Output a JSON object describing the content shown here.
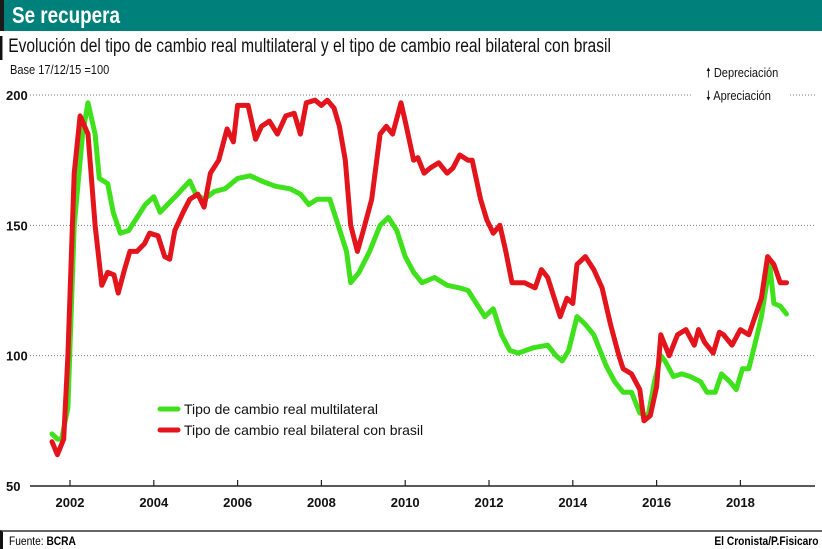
{
  "header": {
    "title": "Se recupera"
  },
  "subtitle": "Evolución del tipo de cambio real multilateral y el tipo de cambio real bilateral con brasil",
  "base_note": "Base 17/12/15 =100",
  "indicators": {
    "up": "Depreciación",
    "down": "Apreciación"
  },
  "footer": {
    "source_label": "Fuente:",
    "source": "BCRA",
    "credit": "El Cronista/P.Fisicaro"
  },
  "chart_data": {
    "type": "line",
    "title": "Evolución del tipo de cambio real multilateral y el tipo de cambio real bilateral con brasil",
    "ylim": [
      50,
      200
    ],
    "yticks": [
      50,
      100,
      150,
      200
    ],
    "xticks": [
      2002,
      2004,
      2006,
      2008,
      2010,
      2012,
      2014,
      2016,
      2018
    ],
    "grid": "horizontal dotted",
    "legend": "bottom-left",
    "series": [
      {
        "name": "Tipo de cambio real multilateral",
        "color": "#3fe11c",
        "points": [
          [
            2001.57,
            70
          ],
          [
            2001.7,
            68
          ],
          [
            2001.8,
            68
          ],
          [
            2001.95,
            80
          ],
          [
            2002.1,
            150
          ],
          [
            2002.3,
            185
          ],
          [
            2002.43,
            197
          ],
          [
            2002.6,
            185
          ],
          [
            2002.7,
            168
          ],
          [
            2002.9,
            166
          ],
          [
            2003.03,
            155
          ],
          [
            2003.2,
            147
          ],
          [
            2003.4,
            148
          ],
          [
            2003.6,
            153
          ],
          [
            2003.8,
            158
          ],
          [
            2004.0,
            161
          ],
          [
            2004.15,
            155
          ],
          [
            2004.33,
            158
          ],
          [
            2004.57,
            162
          ],
          [
            2004.86,
            167
          ],
          [
            2005.0,
            162
          ],
          [
            2005.2,
            160
          ],
          [
            2005.45,
            163
          ],
          [
            2005.7,
            164
          ],
          [
            2006.0,
            168
          ],
          [
            2006.3,
            169
          ],
          [
            2006.57,
            167
          ],
          [
            2006.9,
            165
          ],
          [
            2007.25,
            164
          ],
          [
            2007.5,
            162
          ],
          [
            2007.7,
            158
          ],
          [
            2007.9,
            160
          ],
          [
            2008.2,
            160
          ],
          [
            2008.4,
            150
          ],
          [
            2008.6,
            140
          ],
          [
            2008.7,
            128
          ],
          [
            2008.9,
            132
          ],
          [
            2009.15,
            140
          ],
          [
            2009.4,
            150
          ],
          [
            2009.6,
            153
          ],
          [
            2009.8,
            148
          ],
          [
            2010.0,
            138
          ],
          [
            2010.2,
            132
          ],
          [
            2010.4,
            128
          ],
          [
            2010.7,
            130
          ],
          [
            2011.0,
            127
          ],
          [
            2011.3,
            126
          ],
          [
            2011.5,
            125
          ],
          [
            2011.7,
            120
          ],
          [
            2011.9,
            115
          ],
          [
            2012.1,
            118
          ],
          [
            2012.3,
            108
          ],
          [
            2012.5,
            102
          ],
          [
            2012.7,
            101
          ],
          [
            2013.05,
            103
          ],
          [
            2013.4,
            104
          ],
          [
            2013.6,
            100
          ],
          [
            2013.75,
            98
          ],
          [
            2013.9,
            102
          ],
          [
            2014.1,
            115
          ],
          [
            2014.3,
            112
          ],
          [
            2014.5,
            108
          ],
          [
            2014.8,
            96
          ],
          [
            2015.0,
            90
          ],
          [
            2015.2,
            86
          ],
          [
            2015.4,
            86
          ],
          [
            2015.6,
            78
          ],
          [
            2015.8,
            77
          ],
          [
            2015.95,
            90
          ],
          [
            2016.1,
            100
          ],
          [
            2016.2,
            98
          ],
          [
            2016.4,
            92
          ],
          [
            2016.6,
            93
          ],
          [
            2016.8,
            92
          ],
          [
            2017.05,
            90
          ],
          [
            2017.2,
            86
          ],
          [
            2017.4,
            86
          ],
          [
            2017.55,
            93
          ],
          [
            2017.75,
            90
          ],
          [
            2017.9,
            87
          ],
          [
            2018.05,
            95
          ],
          [
            2018.2,
            95
          ],
          [
            2018.4,
            108
          ],
          [
            2018.5,
            115
          ],
          [
            2018.7,
            135
          ],
          [
            2018.8,
            120
          ],
          [
            2018.95,
            119
          ],
          [
            2019.1,
            116
          ]
        ]
      },
      {
        "name": "Tipo de cambio real bilateral con brasil",
        "color": "#e3141b",
        "points": [
          [
            2001.57,
            67
          ],
          [
            2001.7,
            62
          ],
          [
            2001.85,
            68
          ],
          [
            2001.95,
            100
          ],
          [
            2002.1,
            170
          ],
          [
            2002.24,
            192
          ],
          [
            2002.43,
            185
          ],
          [
            2002.6,
            150
          ],
          [
            2002.76,
            127
          ],
          [
            2002.9,
            132
          ],
          [
            2003.05,
            131
          ],
          [
            2003.15,
            124
          ],
          [
            2003.3,
            133
          ],
          [
            2003.43,
            140
          ],
          [
            2003.6,
            140
          ],
          [
            2003.78,
            143
          ],
          [
            2003.9,
            147
          ],
          [
            2004.1,
            146
          ],
          [
            2004.26,
            138
          ],
          [
            2004.38,
            137
          ],
          [
            2004.5,
            148
          ],
          [
            2004.7,
            155
          ],
          [
            2004.86,
            160
          ],
          [
            2005.05,
            162
          ],
          [
            2005.2,
            157
          ],
          [
            2005.35,
            170
          ],
          [
            2005.55,
            175
          ],
          [
            2005.75,
            187
          ],
          [
            2005.9,
            182
          ],
          [
            2006.0,
            196
          ],
          [
            2006.25,
            196
          ],
          [
            2006.43,
            183
          ],
          [
            2006.57,
            188
          ],
          [
            2006.76,
            190
          ],
          [
            2006.95,
            185
          ],
          [
            2007.15,
            192
          ],
          [
            2007.35,
            193
          ],
          [
            2007.5,
            185
          ],
          [
            2007.64,
            197
          ],
          [
            2007.85,
            198
          ],
          [
            2008.0,
            196
          ],
          [
            2008.14,
            198
          ],
          [
            2008.3,
            195
          ],
          [
            2008.43,
            188
          ],
          [
            2008.57,
            175
          ],
          [
            2008.7,
            150
          ],
          [
            2008.86,
            140
          ],
          [
            2009.0,
            148
          ],
          [
            2009.2,
            160
          ],
          [
            2009.4,
            185
          ],
          [
            2009.55,
            188
          ],
          [
            2009.7,
            185
          ],
          [
            2009.9,
            197
          ],
          [
            2010.0,
            190
          ],
          [
            2010.2,
            175
          ],
          [
            2010.3,
            176
          ],
          [
            2010.45,
            170
          ],
          [
            2010.6,
            172
          ],
          [
            2010.8,
            174
          ],
          [
            2011.0,
            170
          ],
          [
            2011.14,
            172
          ],
          [
            2011.3,
            177
          ],
          [
            2011.5,
            175
          ],
          [
            2011.6,
            175
          ],
          [
            2011.8,
            160
          ],
          [
            2011.95,
            152
          ],
          [
            2012.1,
            147
          ],
          [
            2012.26,
            150
          ],
          [
            2012.4,
            140
          ],
          [
            2012.55,
            128
          ],
          [
            2012.85,
            128
          ],
          [
            2013.1,
            126
          ],
          [
            2013.25,
            133
          ],
          [
            2013.4,
            130
          ],
          [
            2013.6,
            120
          ],
          [
            2013.7,
            115
          ],
          [
            2013.86,
            122
          ],
          [
            2014.0,
            120
          ],
          [
            2014.1,
            135
          ],
          [
            2014.3,
            138
          ],
          [
            2014.5,
            133
          ],
          [
            2014.7,
            126
          ],
          [
            2014.9,
            112
          ],
          [
            2015.1,
            100
          ],
          [
            2015.2,
            95
          ],
          [
            2015.4,
            93
          ],
          [
            2015.6,
            87
          ],
          [
            2015.7,
            75
          ],
          [
            2015.85,
            77
          ],
          [
            2016.0,
            88
          ],
          [
            2016.1,
            108
          ],
          [
            2016.3,
            100
          ],
          [
            2016.5,
            108
          ],
          [
            2016.7,
            110
          ],
          [
            2016.9,
            104
          ],
          [
            2017.0,
            110
          ],
          [
            2017.15,
            105
          ],
          [
            2017.35,
            101
          ],
          [
            2017.5,
            109
          ],
          [
            2017.6,
            108
          ],
          [
            2017.8,
            104
          ],
          [
            2018.0,
            110
          ],
          [
            2018.2,
            108
          ],
          [
            2018.35,
            115
          ],
          [
            2018.5,
            122
          ],
          [
            2018.65,
            138
          ],
          [
            2018.8,
            135
          ],
          [
            2018.95,
            128
          ],
          [
            2019.1,
            128
          ]
        ]
      }
    ]
  }
}
